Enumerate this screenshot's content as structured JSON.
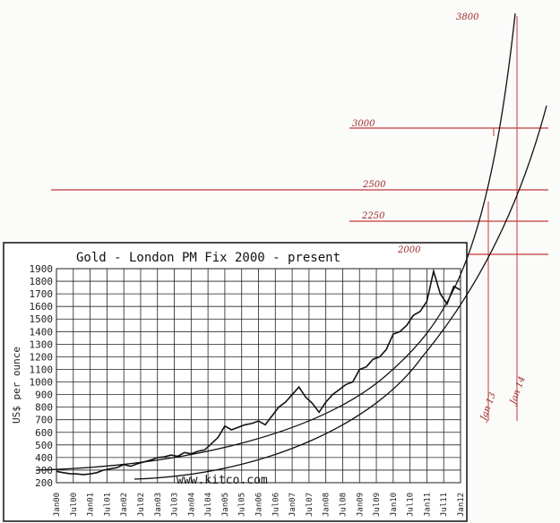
{
  "chart_data": {
    "type": "line",
    "title": "Gold - London PM Fix 2000 - present",
    "ylabel": "US$ per ounce",
    "watermark": "www.kitco.com",
    "ylim": [
      200,
      1900
    ],
    "yticks": [
      200,
      300,
      400,
      500,
      600,
      700,
      800,
      900,
      1000,
      1100,
      1200,
      1300,
      1400,
      1500,
      1600,
      1700,
      1800,
      1900
    ],
    "xlabels": [
      "Jan00",
      "Jul00",
      "Jan01",
      "Jul01",
      "Jan02",
      "Jul02",
      "Jan03",
      "Jul03",
      "Jan04",
      "Jul04",
      "Jan05",
      "Jul05",
      "Jan06",
      "Jul06",
      "Jan07",
      "Jul07",
      "Jan08",
      "Jul08",
      "Jan09",
      "Jul09",
      "Jan10",
      "Jul10",
      "Jan11",
      "Jul11",
      "Jan12"
    ],
    "series": [
      {
        "values": [
          290,
          280,
          272,
          270,
          265,
          270,
          280,
          300,
          310,
          320,
          345,
          330,
          350,
          365,
          380,
          400,
          405,
          420,
          410,
          440,
          430,
          450,
          460,
          510,
          560,
          650,
          620,
          640,
          660,
          670,
          690,
          660,
          730,
          800,
          840,
          900,
          960,
          880,
          830,
          760,
          840,
          900,
          940,
          980,
          1000,
          1100,
          1120,
          1180,
          1200,
          1260,
          1380,
          1400,
          1450,
          1530,
          1560,
          1640,
          1880,
          1700,
          1620,
          1760,
          1730
        ]
      }
    ],
    "hand_annotations": {
      "price_levels": [
        "3800",
        "3000",
        "2500",
        "2250",
        "2000"
      ],
      "date_labels": [
        "Jan 13",
        "Jan 14"
      ]
    }
  }
}
